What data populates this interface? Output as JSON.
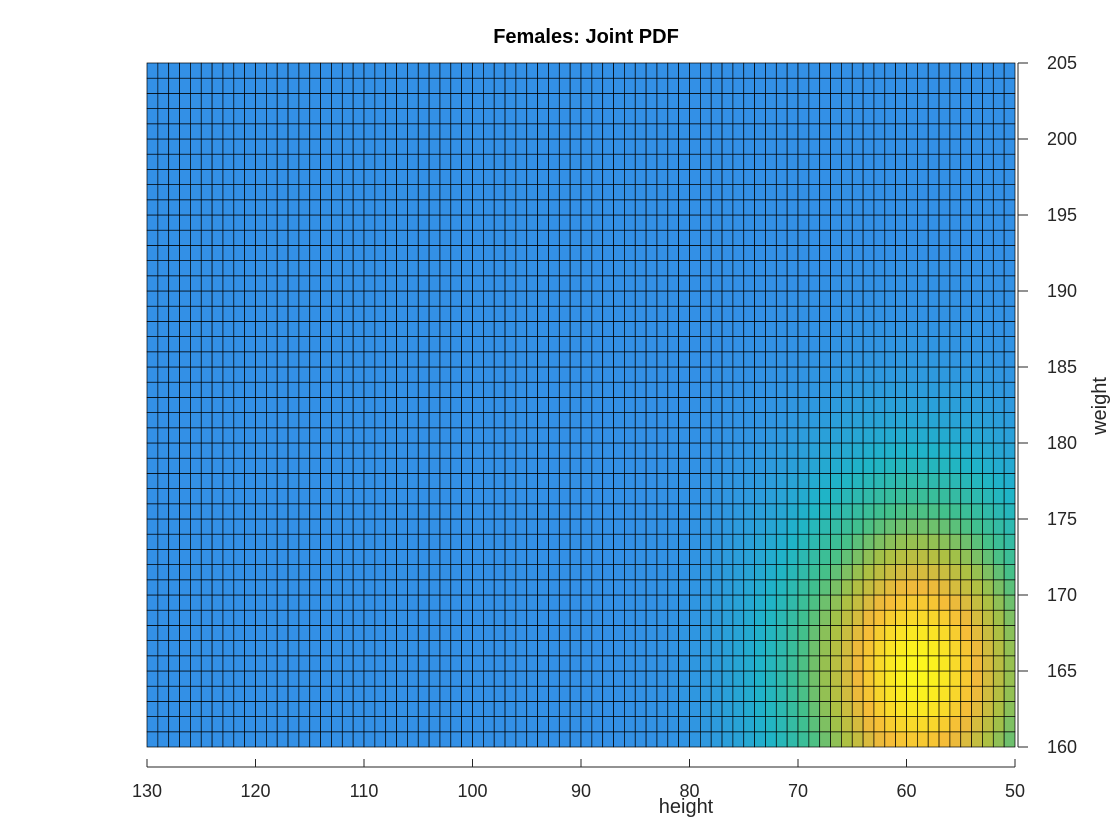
{
  "chart_data": {
    "type": "heatmap",
    "title": "Females: Joint PDF",
    "xlabel": "height",
    "ylabel": "weight",
    "xlim": [
      130,
      50
    ],
    "ylim": [
      160,
      205
    ],
    "x_reversed": true,
    "xticks": [
      130,
      120,
      110,
      100,
      90,
      80,
      70,
      60,
      50
    ],
    "yticks": [
      160,
      165,
      170,
      175,
      180,
      185,
      190,
      195,
      200,
      205
    ],
    "y_axis_location": "right",
    "grid_cells": {
      "columns": 80,
      "rows": 45
    },
    "peak": {
      "height": 59,
      "weight": 165
    },
    "spread": {
      "height": 8,
      "weight": 8
    },
    "colormap": [
      "#3390e6",
      "#1fb4c8",
      "#42c08c",
      "#a8c044",
      "#f5b93a",
      "#fcf71c"
    ],
    "cell_edge_color": "#000000"
  }
}
